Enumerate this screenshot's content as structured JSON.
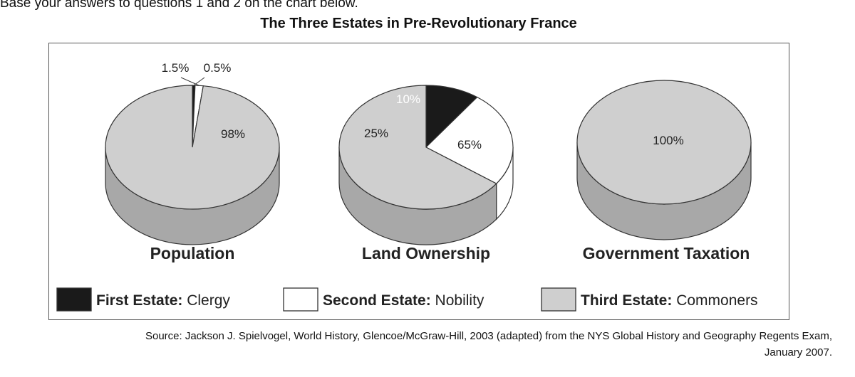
{
  "intro_text": "Base your answers to questions 1 and 2 on the chart below.",
  "chart_data": {
    "type": "pie",
    "title": "The Three Estates in Pre-Revolutionary France",
    "colors": {
      "first": "#1a1a1a",
      "second": "#ffffff",
      "third": "#cfcfcf",
      "third_side": "#a8a8a8",
      "outline": "#333333"
    },
    "charts": [
      {
        "label": "Population",
        "slices": [
          {
            "estate": "First Estate",
            "value": 0.5,
            "label": "0.5%"
          },
          {
            "estate": "Second Estate",
            "value": 1.5,
            "label": "1.5%"
          },
          {
            "estate": "Third Estate",
            "value": 98,
            "label": "98%"
          }
        ]
      },
      {
        "label": "Land Ownership",
        "slices": [
          {
            "estate": "First Estate",
            "value": 10,
            "label": "10%"
          },
          {
            "estate": "Second Estate",
            "value": 25,
            "label": "25%"
          },
          {
            "estate": "Third Estate",
            "value": 65,
            "label": "65%"
          }
        ]
      },
      {
        "label": "Government Taxation",
        "slices": [
          {
            "estate": "Third Estate",
            "value": 100,
            "label": "100%"
          }
        ]
      }
    ],
    "legend": {
      "position": "bottom",
      "items": [
        {
          "estate": "First Estate",
          "bold": "First Estate:",
          "rest": " Clergy",
          "color": "#1a1a1a"
        },
        {
          "estate": "Second Estate",
          "bold": "Second Estate:",
          "rest": " Nobility",
          "color": "#ffffff"
        },
        {
          "estate": "Third Estate",
          "bold": "Third Estate:",
          "rest": " Commoners",
          "color": "#cfcfcf"
        }
      ]
    }
  },
  "source_line1": "Source: Jackson J. Spielvogel, World History, Glencoe/McGraw-Hill, 2003 (adapted) from the NYS Global History and Geography Regents Exam,",
  "source_line2": "January 2007."
}
